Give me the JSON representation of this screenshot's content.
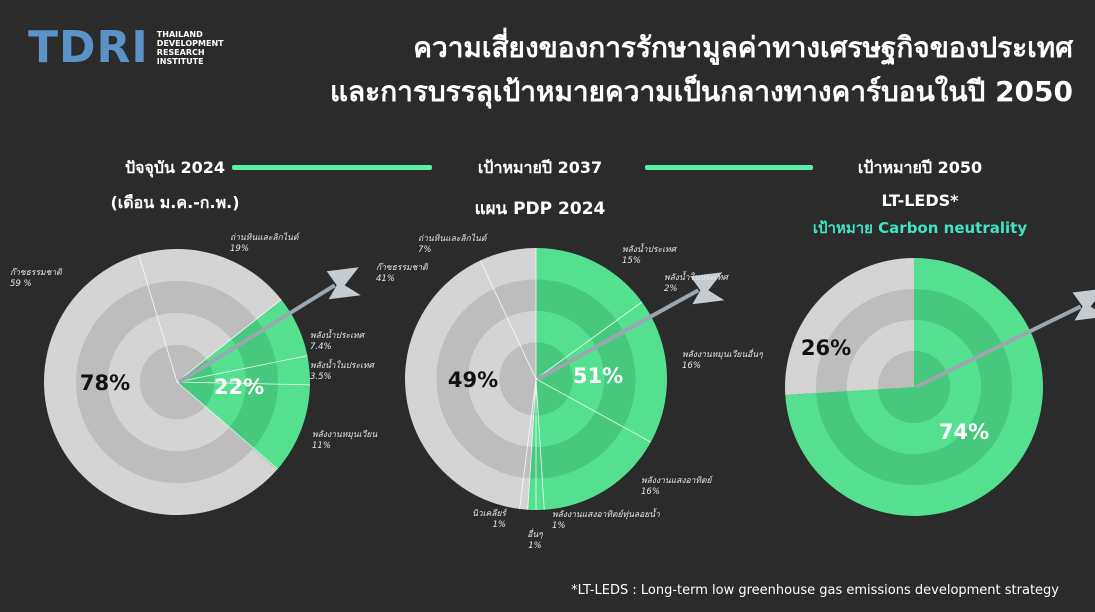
{
  "logo": {
    "mark": "TDRI",
    "sub": [
      "THAILAND",
      "DEVELOPMENT",
      "RESEARCH",
      "INSTITUTE"
    ]
  },
  "title": {
    "line1": "ความเสี่ยงของการรักษามูลค่าทางเศรษฐกิจของประเทศ",
    "line2": "และการบรรลุเป้าหมายความเป็นกลางทางคาร์บอนในปี 2050"
  },
  "columns": [
    {
      "heading": "ปัจจุบัน 2024",
      "sub": "(เดือน ม.ค.-ก.พ.)"
    },
    {
      "heading": "เป้าหมายปี 2037",
      "sub": "แผน PDP 2024"
    },
    {
      "heading": "เป้าหมายปี 2050",
      "sub": "LT-LEDS*",
      "sub2": "เป้าหมาย Carbon neutrality"
    }
  ],
  "footnote": "*LT-LEDS : Long-term low greenhouse gas emissions development strategy",
  "colors": {
    "green": "#55e08f",
    "green_dark": "#46c97c",
    "grey": "#d4d4d4",
    "grey_dark": "#bdbdbd",
    "bg": "#2b2b2b"
  },
  "chart_data": [
    {
      "type": "pie",
      "title": "ปัจจุบัน 2024",
      "totals": [
        {
          "label": "78%",
          "value": 78,
          "group": "grey"
        },
        {
          "label": "22%",
          "value": 22,
          "group": "green"
        }
      ],
      "slices": [
        {
          "name": "ก๊าซธรรมชาติ",
          "label": "59 %",
          "value": 59,
          "group": "grey"
        },
        {
          "name": "ถ่านหินและลิกไนต์",
          "label": "19%",
          "value": 19,
          "group": "grey"
        },
        {
          "name": "พลังน้ำประเทศ",
          "label": "7.4%",
          "value": 7.4,
          "group": "green"
        },
        {
          "name": "พลังน้ำในประเทศ",
          "label": "3.5%",
          "value": 3.5,
          "group": "green"
        },
        {
          "name": "พลังงานหมุนเวียน",
          "label": "11%",
          "value": 11,
          "group": "green"
        }
      ]
    },
    {
      "type": "pie",
      "title": "เป้าหมายปี 2037",
      "totals": [
        {
          "label": "49%",
          "value": 49,
          "group": "grey"
        },
        {
          "label": "51%",
          "value": 51,
          "group": "green"
        }
      ],
      "slices": [
        {
          "name": "พลังน้ำประเทศ",
          "label": "15%",
          "value": 15,
          "group": "green"
        },
        {
          "name": "พลังน้ำในประเทศ",
          "label": "2%",
          "value": 2,
          "group": "green"
        },
        {
          "name": "พลังงานหมุนเวียนอื่นๆ",
          "label": "16%",
          "value": 16,
          "group": "green"
        },
        {
          "name": "พลังงานแสงอาทิตย์",
          "label": "16%",
          "value": 16,
          "group": "green"
        },
        {
          "name": "พลังงานแสงอาทิตย์ทุ่นลอยน้ำ",
          "label": "1%",
          "value": 1,
          "group": "green"
        },
        {
          "name": "อื่นๆ",
          "label": "1%",
          "value": 1,
          "group": "grey"
        },
        {
          "name": "นิวเคลียร์",
          "label": "1%",
          "value": 1,
          "group": "grey"
        },
        {
          "name": "ก๊าซธรรมชาติ",
          "label": "41%",
          "value": 41,
          "group": "grey"
        },
        {
          "name": "ถ่านหินและลิกไนต์",
          "label": "7%",
          "value": 7,
          "group": "grey"
        }
      ]
    },
    {
      "type": "pie",
      "title": "เป้าหมายปี 2050",
      "totals": [
        {
          "label": "26%",
          "value": 26,
          "group": "grey"
        },
        {
          "label": "74%",
          "value": 74,
          "group": "green"
        }
      ]
    }
  ]
}
